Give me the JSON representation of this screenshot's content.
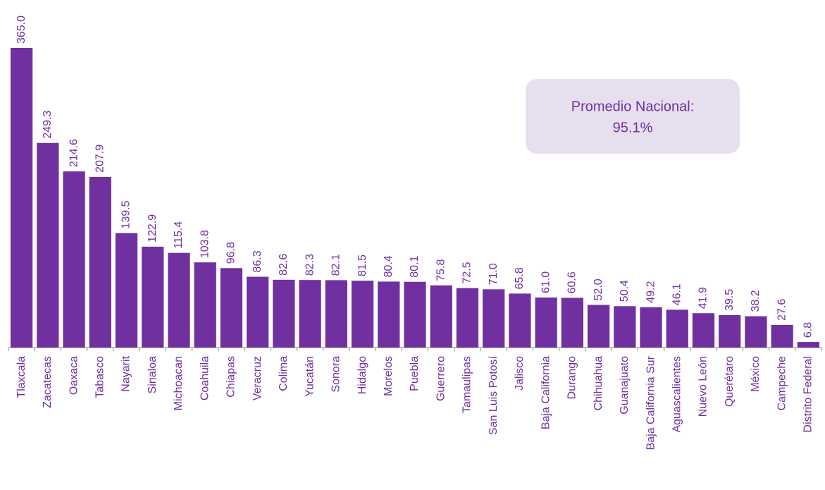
{
  "chart_data": {
    "type": "bar",
    "color": "#7030a0",
    "categories": [
      "Tlaxcala",
      "Zacatecas",
      "Oaxaca",
      "Tabasco",
      "Nayarit",
      "Sinaloa",
      "Michoacan",
      "Coahuila",
      "Chiapas",
      "Veracruz",
      "Colima",
      "Yucatán",
      "Sonora",
      "Hidalgo",
      "Morelos",
      "Puebla",
      "Guerrero",
      "Tamaulipas",
      "San Luis Potosí",
      "Jalisco",
      "Baja California",
      "Durango",
      "Chihuahua",
      "Guanajuato",
      "Baja California Sur",
      "Aguascalientes",
      "Nuevo León",
      "Querétaro",
      "México",
      "Campeche",
      "Distrito Federal"
    ],
    "values": [
      365.0,
      249.3,
      214.6,
      207.9,
      139.5,
      122.9,
      115.4,
      103.8,
      96.8,
      86.3,
      82.6,
      82.3,
      82.1,
      81.5,
      80.4,
      80.1,
      75.8,
      72.5,
      71.0,
      65.8,
      61.0,
      60.6,
      52.0,
      50.4,
      49.2,
      46.1,
      41.9,
      39.5,
      38.2,
      27.6,
      6.8
    ],
    "value_labels": [
      "365.0",
      "249.3",
      "214.6",
      "207.9",
      "139.5",
      "122.9",
      "115.4",
      "103.8",
      "96.8",
      "86.3",
      "82.6",
      "82.3",
      "82.1",
      "81.5",
      "80.4",
      "80.1",
      "75.8",
      "72.5",
      "71.0",
      "65.8",
      "61.0",
      "60.6",
      "52.0",
      "50.4",
      "49.2",
      "46.1",
      "41.9",
      "39.5",
      "38.2",
      "27.6",
      "6.8"
    ],
    "annotation": [
      "Promedio Nacional:",
      "95.1%"
    ]
  }
}
